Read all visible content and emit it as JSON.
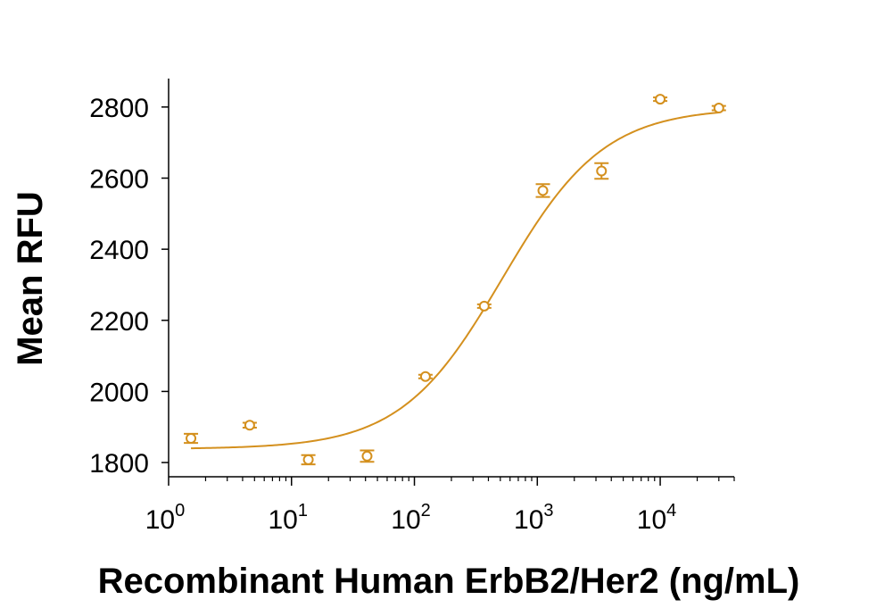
{
  "chart_data": {
    "type": "scatter",
    "title": "",
    "xlabel": "Recombinant Human ErbB2/Her2 (ng/mL)",
    "ylabel": "Mean RFU",
    "x_scale": "log",
    "xlim": [
      1,
      40000
    ],
    "ylim": [
      1760,
      2880
    ],
    "x_ticks": [
      {
        "value": 1,
        "base": "10",
        "exp": "0"
      },
      {
        "value": 10,
        "base": "10",
        "exp": "1"
      },
      {
        "value": 100,
        "base": "10",
        "exp": "2"
      },
      {
        "value": 1000,
        "base": "10",
        "exp": "3"
      },
      {
        "value": 10000,
        "base": "10",
        "exp": "4"
      }
    ],
    "y_ticks": [
      {
        "value": 1800,
        "label": "1800"
      },
      {
        "value": 2000,
        "label": "2000"
      },
      {
        "value": 2200,
        "label": "2200"
      },
      {
        "value": 2400,
        "label": "2400"
      },
      {
        "value": 2600,
        "label": "2600"
      },
      {
        "value": 2800,
        "label": "2800"
      }
    ],
    "grid": false,
    "legend": "none",
    "color": "#D4901E",
    "series": [
      {
        "points": [
          {
            "x": 1.52,
            "y": 1868,
            "err": 13
          },
          {
            "x": 4.57,
            "y": 1905,
            "err": 7
          },
          {
            "x": 13.7,
            "y": 1808,
            "err": 13
          },
          {
            "x": 41.2,
            "y": 1818,
            "err": 16
          },
          {
            "x": 123,
            "y": 2042,
            "err": 5
          },
          {
            "x": 370,
            "y": 2240,
            "err": 5
          },
          {
            "x": 1110,
            "y": 2565,
            "err": 18
          },
          {
            "x": 3330,
            "y": 2620,
            "err": 22
          },
          {
            "x": 10000,
            "y": 2822,
            "err": 5
          },
          {
            "x": 30000,
            "y": 2797,
            "err": 6
          }
        ],
        "fit": {
          "model": "4PL",
          "bottom": 1838,
          "top": 2798,
          "ec50": 520,
          "hill": 1.05
        }
      }
    ]
  }
}
